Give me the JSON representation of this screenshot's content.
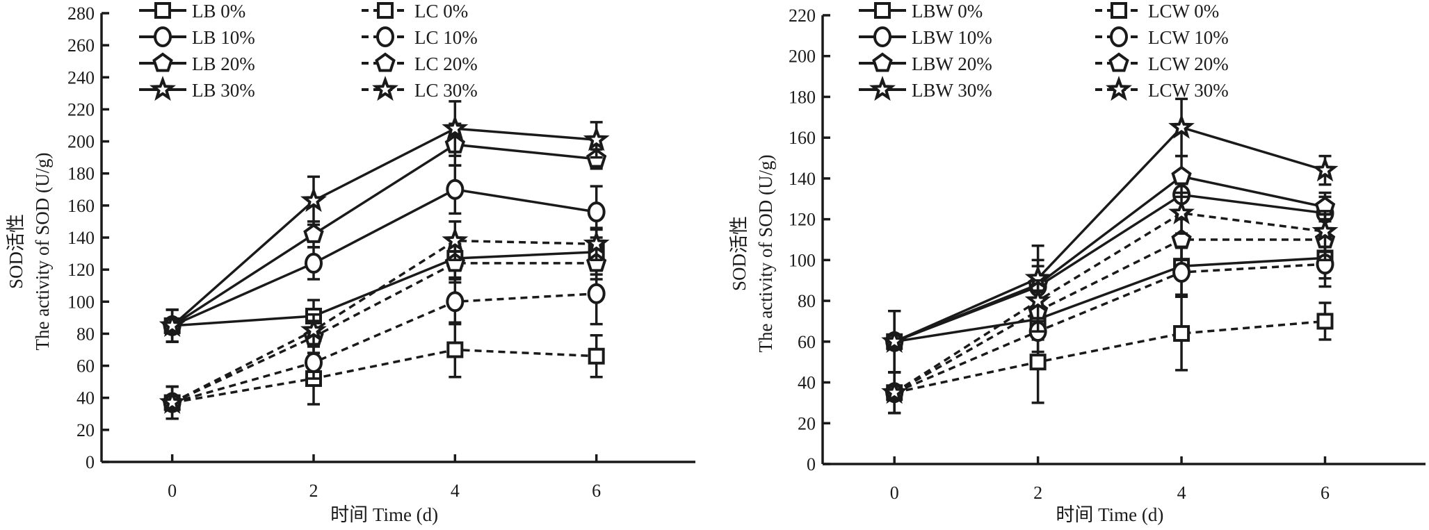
{
  "chart_data": [
    {
      "type": "line",
      "title": "",
      "xlabel": "时间 Time (d)",
      "ylabel_line1": "SOD活性",
      "ylabel_line2": "The activity of SOD (U/g)",
      "x": [
        0,
        2,
        4,
        6
      ],
      "x_ticks": [
        "0",
        "2",
        "4",
        "6"
      ],
      "xlim": [
        -1,
        7.4
      ],
      "ylim": [
        0,
        280
      ],
      "y_ticks": [
        "0",
        "20",
        "40",
        "60",
        "80",
        "100",
        "120",
        "140",
        "160",
        "180",
        "200",
        "220",
        "240",
        "260",
        "280"
      ],
      "grid": false,
      "legend_position": "top-left",
      "series": [
        {
          "name": "LB 0%",
          "marker": "square",
          "dash": "solid",
          "values": [
            85,
            91,
            127,
            131
          ],
          "errors": [
            10,
            10,
            12,
            14
          ]
        },
        {
          "name": "LB 10%",
          "marker": "circle",
          "dash": "solid",
          "values": [
            85,
            124,
            170,
            156
          ],
          "errors": [
            10,
            10,
            15,
            16
          ]
        },
        {
          "name": "LB 20%",
          "marker": "pentagon",
          "dash": "solid",
          "values": [
            85,
            142,
            198,
            189
          ],
          "errors": [
            10,
            8,
            13,
            6
          ]
        },
        {
          "name": "LB 30%",
          "marker": "star",
          "dash": "solid",
          "values": [
            85,
            163,
            208,
            201
          ],
          "errors": [
            10,
            15,
            17,
            11
          ]
        },
        {
          "name": "LC 0%",
          "marker": "square",
          "dash": "dashed",
          "values": [
            37,
            52,
            70,
            66
          ],
          "errors": [
            10,
            16,
            17,
            13
          ]
        },
        {
          "name": "LC 10%",
          "marker": "circle",
          "dash": "dashed",
          "values": [
            37,
            62,
            100,
            105
          ],
          "errors": [
            10,
            10,
            14,
            19
          ]
        },
        {
          "name": "LC 20%",
          "marker": "pentagon",
          "dash": "dashed",
          "values": [
            37,
            78,
            124,
            124
          ],
          "errors": [
            10,
            10,
            12,
            10
          ]
        },
        {
          "name": "LC 30%",
          "marker": "star",
          "dash": "dashed",
          "values": [
            37,
            82,
            138,
            136
          ],
          "errors": [
            10,
            10,
            12,
            10
          ]
        }
      ]
    },
    {
      "type": "line",
      "title": "",
      "xlabel": "时间 Time (d)",
      "ylabel_line1": "SOD活性",
      "ylabel_line2": "The activity of SOD (U/g)",
      "x": [
        0,
        2,
        4,
        6
      ],
      "x_ticks": [
        "0",
        "2",
        "4",
        "6"
      ],
      "xlim": [
        -1,
        7.4
      ],
      "ylim": [
        0,
        220
      ],
      "y_ticks": [
        "0",
        "20",
        "40",
        "60",
        "80",
        "100",
        "120",
        "140",
        "160",
        "180",
        "200",
        "220"
      ],
      "grid": false,
      "legend_position": "top-left",
      "series": [
        {
          "name": "LBW 0%",
          "marker": "square",
          "dash": "solid",
          "values": [
            60,
            71,
            97,
            101
          ],
          "errors": [
            15,
            10,
            14,
            10
          ]
        },
        {
          "name": "LBW 10%",
          "marker": "circle",
          "dash": "solid",
          "values": [
            60,
            87,
            132,
            123
          ],
          "errors": [
            15,
            10,
            10,
            8
          ]
        },
        {
          "name": "LBW 20%",
          "marker": "pentagon",
          "dash": "solid",
          "values": [
            60,
            88,
            141,
            126
          ],
          "errors": [
            15,
            12,
            10,
            7
          ]
        },
        {
          "name": "LBW 30%",
          "marker": "star",
          "dash": "solid",
          "values": [
            60,
            91,
            165,
            144
          ],
          "errors": [
            15,
            16,
            14,
            7
          ]
        },
        {
          "name": "LCW 0%",
          "marker": "square",
          "dash": "dashed",
          "values": [
            35,
            50,
            64,
            70
          ],
          "errors": [
            10,
            20,
            18,
            9
          ]
        },
        {
          "name": "LCW 10%",
          "marker": "circle",
          "dash": "dashed",
          "values": [
            35,
            65,
            94,
            98
          ],
          "errors": [
            10,
            10,
            12,
            11
          ]
        },
        {
          "name": "LCW 20%",
          "marker": "pentagon",
          "dash": "dashed",
          "values": [
            35,
            75,
            110,
            110
          ],
          "errors": [
            10,
            10,
            10,
            10
          ]
        },
        {
          "name": "LCW 30%",
          "marker": "star",
          "dash": "dashed",
          "values": [
            35,
            80,
            123,
            114
          ],
          "errors": [
            10,
            10,
            10,
            10
          ]
        }
      ]
    }
  ],
  "colors": {
    "ink": "#1a1a1a",
    "background": "#ffffff"
  }
}
